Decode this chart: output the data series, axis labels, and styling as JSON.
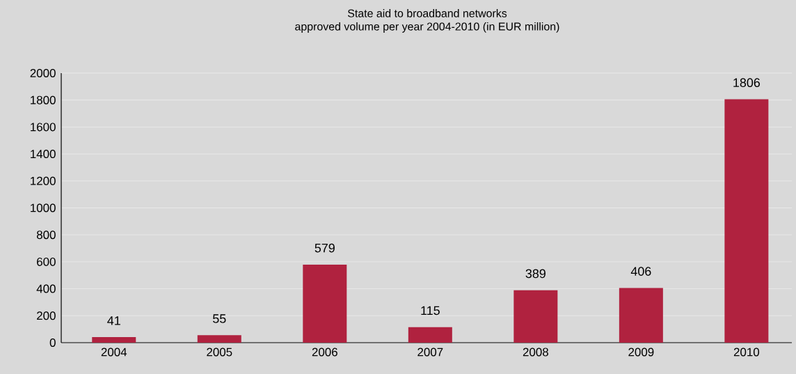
{
  "chart_data": {
    "type": "bar",
    "title": "State aid to broadband networks",
    "subtitle": "approved volume per year 2004-2010 (in EUR million)",
    "categories": [
      "2004",
      "2005",
      "2006",
      "2007",
      "2008",
      "2009",
      "2010"
    ],
    "values": [
      41,
      55,
      579,
      115,
      389,
      406,
      1806
    ],
    "color": "#b0223f",
    "ylim": [
      0,
      2000
    ],
    "yticks": [
      0,
      200,
      400,
      600,
      800,
      1000,
      1200,
      1400,
      1600,
      1800,
      2000
    ],
    "grid": "y",
    "data_labels": true
  }
}
